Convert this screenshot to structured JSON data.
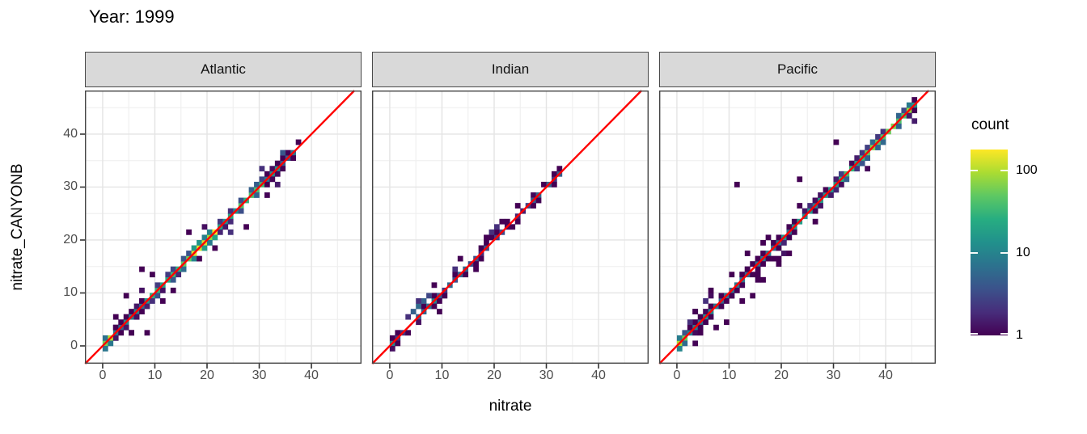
{
  "title": "Year: 1999",
  "axes": {
    "x_label": "nitrate",
    "y_label": "nitrate_CANYONB",
    "x_ticks": [
      0,
      10,
      20,
      30,
      40
    ],
    "y_ticks": [
      0,
      10,
      20,
      30,
      40
    ],
    "minor_ticks": [
      5,
      15,
      25,
      35,
      45
    ],
    "x_domain": [
      -3.4,
      49.6
    ],
    "y_domain": [
      -3.36,
      48.24
    ]
  },
  "legend": {
    "title": "count",
    "ticks": [
      1,
      10,
      100
    ],
    "max_count": 180,
    "scale": "log10"
  },
  "colors": {
    "identity_line": "#FF0000",
    "strip_bg": "#D9D9D9",
    "panel_bg": "#FFFFFF",
    "panel_border": "#454545",
    "grid_major": "#E4E4E4",
    "grid_minor": "#F0F0F0",
    "tick_mark": "#333333",
    "tick_text": "#4D4D4D",
    "viridis": [
      "#440154",
      "#472D7B",
      "#3B528B",
      "#2C728E",
      "#21918C",
      "#27AD81",
      "#5DC863",
      "#AADC32",
      "#FDE725"
    ]
  },
  "chart_data": {
    "type": "heatmap",
    "subtype": "faceted 2d-bin count heatmap (geom_bin2d), binwidth 1x1, log10 colour scale",
    "identity_line": "y = x",
    "facets": [
      {
        "name": "Atlantic",
        "diagonal_range": [
          0,
          37
        ],
        "seed": 101,
        "band_p": 0.7,
        "off_p": 0.25,
        "skip_p": 0.04,
        "wide_below": 0,
        "wide_p": 0,
        "density_profile": [
          [
            0,
            2,
            90
          ],
          [
            2,
            8,
            9
          ],
          [
            8,
            13,
            22
          ],
          [
            13,
            17,
            45
          ],
          [
            17,
            22,
            130
          ],
          [
            22,
            26,
            22
          ],
          [
            26,
            31,
            35
          ],
          [
            31,
            34,
            12
          ],
          [
            34,
            37,
            7
          ]
        ],
        "outliers": [
          [
            7,
            14,
            1
          ],
          [
            9,
            13,
            1
          ],
          [
            4,
            9,
            1
          ],
          [
            8,
            2,
            1
          ],
          [
            5,
            2,
            1
          ],
          [
            18,
            16,
            1
          ],
          [
            27,
            22,
            1
          ],
          [
            24,
            21,
            2
          ],
          [
            2,
            5,
            1
          ],
          [
            13,
            10,
            1
          ],
          [
            21,
            18,
            1
          ],
          [
            30,
            33,
            2
          ],
          [
            34,
            36,
            4
          ],
          [
            16,
            21,
            1
          ],
          [
            11,
            8,
            1
          ]
        ]
      },
      {
        "name": "Indian",
        "diagonal_range": [
          0,
          33
        ],
        "seed": 202,
        "band_p": 0.45,
        "off_p": 0.15,
        "skip_p": 0.14,
        "wide_below": 0,
        "wide_p": 0,
        "density_profile": [
          [
            0,
            1,
            16
          ],
          [
            1,
            4,
            3
          ],
          [
            4,
            9,
            8
          ],
          [
            9,
            15,
            4
          ],
          [
            15,
            22,
            3
          ],
          [
            22,
            27,
            2
          ],
          [
            27,
            33,
            4
          ]
        ],
        "outliers": [
          [
            5,
            7,
            6
          ],
          [
            6,
            8,
            5
          ],
          [
            7,
            9,
            3
          ],
          [
            4,
            6,
            5
          ],
          [
            5,
            8,
            2
          ],
          [
            9,
            6,
            1
          ],
          [
            13,
            16,
            1
          ],
          [
            18,
            20,
            1
          ],
          [
            19,
            21,
            2
          ],
          [
            20,
            22,
            2
          ],
          [
            21,
            23,
            1
          ],
          [
            12,
            14,
            2
          ],
          [
            3,
            5,
            2
          ],
          [
            16,
            14,
            1
          ],
          [
            24,
            26,
            1
          ],
          [
            8,
            11,
            1
          ]
        ]
      },
      {
        "name": "Pacific",
        "diagonal_range": [
          0,
          46
        ],
        "seed": 303,
        "band_p": 0.75,
        "off_p": 0.3,
        "skip_p": 0.03,
        "wide_below": 25,
        "wide_p": 0.4,
        "density_profile": [
          [
            0,
            2,
            70
          ],
          [
            2,
            8,
            8
          ],
          [
            8,
            20,
            6
          ],
          [
            20,
            30,
            12
          ],
          [
            30,
            36,
            28
          ],
          [
            36,
            45,
            60
          ],
          [
            45,
            46,
            15
          ]
        ],
        "outliers": [
          [
            30,
            38,
            1
          ],
          [
            11,
            30,
            1
          ],
          [
            23,
            31,
            1
          ],
          [
            7,
            3,
            1
          ],
          [
            12,
            8,
            1
          ],
          [
            16,
            12,
            1
          ],
          [
            5,
            8,
            2
          ],
          [
            3,
            6,
            1
          ],
          [
            9,
            4,
            1
          ],
          [
            14,
            9,
            1
          ],
          [
            19,
            15,
            1
          ],
          [
            6,
            10,
            1
          ],
          [
            2,
            4,
            2
          ],
          [
            17,
            20,
            1
          ],
          [
            21,
            17,
            1
          ],
          [
            26,
            23,
            1
          ],
          [
            10,
            13,
            1
          ],
          [
            13,
            17,
            1
          ]
        ]
      }
    ]
  }
}
